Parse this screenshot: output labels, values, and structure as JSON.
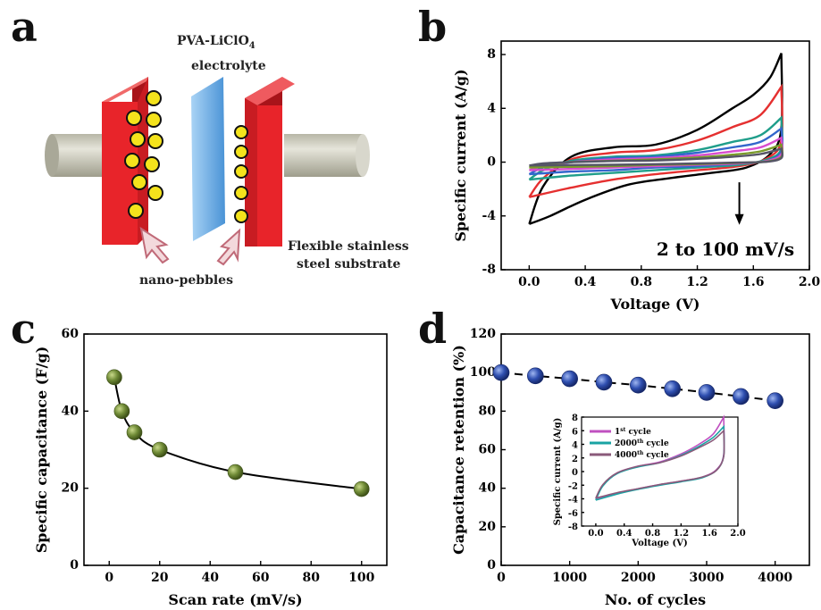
{
  "panels": {
    "a": "a",
    "b": "b",
    "c": "c",
    "d": "d"
  },
  "schematic": {
    "electrolyte_l1": "PVA-LiClO",
    "electrolyte_sub": "4",
    "electrolyte_l2": "electrolyte",
    "substrate_l1": "Flexible stainless",
    "substrate_l2": "steel substrate",
    "pebbles": "nano-pebbles",
    "colors": {
      "plate": "#e8242a",
      "plate_dark": "#a8141a",
      "pebble": "#f4e31c",
      "separator": "#6fb1e6",
      "rod": "#c9c8bb"
    }
  },
  "chart_data": [
    {
      "type": "line",
      "panel": "b",
      "xlabel": "Voltage (V)",
      "ylabel": "Specific current (A/g)",
      "xlim": [
        -0.2,
        2.0
      ],
      "ylim": [
        -8,
        9
      ],
      "xticks": [
        "0.0",
        "0.4",
        "0.8",
        "1.2",
        "1.6",
        "2.0"
      ],
      "yticks": [
        "8",
        "4",
        "0",
        "-4",
        "-8"
      ],
      "annotation": "2 to 100 mV/s",
      "series": [
        {
          "color": "#000000",
          "upper": [
            [
              0.0,
              -4.6
            ],
            [
              0.1,
              -1.8
            ],
            [
              0.3,
              0.4
            ],
            [
              0.6,
              1.1
            ],
            [
              0.9,
              1.3
            ],
            [
              1.2,
              2.4
            ],
            [
              1.45,
              4.0
            ],
            [
              1.6,
              5.0
            ],
            [
              1.72,
              6.3
            ],
            [
              1.8,
              8.1
            ]
          ],
          "lower": [
            [
              1.8,
              8.1
            ],
            [
              1.8,
              2.5
            ],
            [
              1.72,
              0.6
            ],
            [
              1.55,
              -0.4
            ],
            [
              1.3,
              -0.8
            ],
            [
              1.0,
              -1.2
            ],
            [
              0.7,
              -1.7
            ],
            [
              0.4,
              -2.8
            ],
            [
              0.15,
              -4.0
            ],
            [
              0.0,
              -4.6
            ]
          ]
        },
        {
          "color": "#e53030",
          "upper": [
            [
              0.0,
              -2.6
            ],
            [
              0.1,
              -1.2
            ],
            [
              0.3,
              0.2
            ],
            [
              0.6,
              0.7
            ],
            [
              0.9,
              0.9
            ],
            [
              1.2,
              1.6
            ],
            [
              1.45,
              2.6
            ],
            [
              1.65,
              3.5
            ],
            [
              1.8,
              5.6
            ]
          ],
          "lower": [
            [
              1.8,
              5.6
            ],
            [
              1.8,
              1.6
            ],
            [
              1.7,
              0.3
            ],
            [
              1.5,
              -0.3
            ],
            [
              1.2,
              -0.6
            ],
            [
              0.9,
              -0.9
            ],
            [
              0.6,
              -1.3
            ],
            [
              0.3,
              -1.9
            ],
            [
              0.0,
              -2.6
            ]
          ]
        },
        {
          "color": "#1f9e8a",
          "upper": [
            [
              0.0,
              -1.3
            ],
            [
              0.1,
              -0.6
            ],
            [
              0.3,
              0.1
            ],
            [
              0.6,
              0.4
            ],
            [
              0.9,
              0.5
            ],
            [
              1.2,
              0.9
            ],
            [
              1.45,
              1.5
            ],
            [
              1.65,
              2.0
            ],
            [
              1.8,
              3.3
            ]
          ],
          "lower": [
            [
              1.8,
              3.3
            ],
            [
              1.8,
              1.0
            ],
            [
              1.7,
              0.2
            ],
            [
              1.5,
              -0.2
            ],
            [
              1.2,
              -0.4
            ],
            [
              0.9,
              -0.6
            ],
            [
              0.6,
              -0.8
            ],
            [
              0.3,
              -1.0
            ],
            [
              0.0,
              -1.3
            ]
          ]
        },
        {
          "color": "#3366cc",
          "upper": [
            [
              0.0,
              -0.9
            ],
            [
              0.1,
              -0.4
            ],
            [
              0.3,
              0.0
            ],
            [
              0.6,
              0.3
            ],
            [
              0.9,
              0.4
            ],
            [
              1.2,
              0.7
            ],
            [
              1.45,
              1.1
            ],
            [
              1.65,
              1.5
            ],
            [
              1.8,
              2.5
            ]
          ],
          "lower": [
            [
              1.8,
              2.5
            ],
            [
              1.8,
              0.8
            ],
            [
              1.7,
              0.1
            ],
            [
              1.5,
              -0.1
            ],
            [
              1.2,
              -0.3
            ],
            [
              0.9,
              -0.4
            ],
            [
              0.6,
              -0.6
            ],
            [
              0.3,
              -0.7
            ],
            [
              0.0,
              -0.9
            ]
          ]
        },
        {
          "color": "#d94ccf",
          "upper": [
            [
              0.0,
              -0.6
            ],
            [
              0.1,
              -0.3
            ],
            [
              0.3,
              0.0
            ],
            [
              0.6,
              0.2
            ],
            [
              0.9,
              0.3
            ],
            [
              1.2,
              0.5
            ],
            [
              1.45,
              0.8
            ],
            [
              1.65,
              1.1
            ],
            [
              1.8,
              1.8
            ]
          ],
          "lower": [
            [
              1.8,
              1.8
            ],
            [
              1.8,
              0.6
            ],
            [
              1.7,
              0.1
            ],
            [
              1.5,
              -0.1
            ],
            [
              1.2,
              -0.2
            ],
            [
              0.9,
              -0.3
            ],
            [
              0.6,
              -0.4
            ],
            [
              0.3,
              -0.5
            ],
            [
              0.0,
              -0.6
            ]
          ]
        },
        {
          "color": "#7a9a2a",
          "upper": [
            [
              0.0,
              -0.4
            ],
            [
              0.1,
              -0.2
            ],
            [
              0.3,
              0.0
            ],
            [
              0.6,
              0.1
            ],
            [
              0.9,
              0.2
            ],
            [
              1.2,
              0.35
            ],
            [
              1.45,
              0.55
            ],
            [
              1.65,
              0.8
            ],
            [
              1.8,
              1.3
            ]
          ],
          "lower": [
            [
              1.8,
              1.3
            ],
            [
              1.8,
              0.4
            ],
            [
              1.7,
              0.05
            ],
            [
              1.5,
              -0.05
            ],
            [
              1.2,
              -0.15
            ],
            [
              0.9,
              -0.2
            ],
            [
              0.6,
              -0.3
            ],
            [
              0.3,
              -0.35
            ],
            [
              0.0,
              -0.4
            ]
          ]
        },
        {
          "color": "#555566",
          "upper": [
            [
              0.0,
              -0.25
            ],
            [
              0.1,
              -0.1
            ],
            [
              0.3,
              0.0
            ],
            [
              0.6,
              0.08
            ],
            [
              0.9,
              0.12
            ],
            [
              1.2,
              0.25
            ],
            [
              1.45,
              0.4
            ],
            [
              1.65,
              0.6
            ],
            [
              1.8,
              1.0
            ]
          ],
          "lower": [
            [
              1.8,
              1.0
            ],
            [
              1.8,
              0.3
            ],
            [
              1.7,
              0.03
            ],
            [
              1.5,
              -0.03
            ],
            [
              1.2,
              -0.1
            ],
            [
              0.9,
              -0.15
            ],
            [
              0.6,
              -0.2
            ],
            [
              0.3,
              -0.22
            ],
            [
              0.0,
              -0.25
            ]
          ]
        }
      ]
    },
    {
      "type": "line",
      "panel": "c",
      "xlabel": "Scan rate (mV/s)",
      "ylabel": "Specific capacitance (F/g)",
      "xlim": [
        -10,
        110
      ],
      "ylim": [
        0,
        60
      ],
      "xticks": [
        "0",
        "20",
        "40",
        "60",
        "80",
        "100"
      ],
      "yticks": [
        "0",
        "20",
        "40",
        "60"
      ],
      "x": [
        2,
        5,
        10,
        20,
        50,
        100
      ],
      "y": [
        48.8,
        40.0,
        34.5,
        30.0,
        24.2,
        19.8
      ],
      "marker_color": "#6f8a36"
    },
    {
      "type": "line",
      "panel": "d",
      "xlabel": "No. of cycles",
      "ylabel": "Capacitance retention (%)",
      "xlim": [
        0,
        4500
      ],
      "ylim": [
        0,
        120
      ],
      "xticks": [
        "0",
        "1000",
        "2000",
        "3000",
        "4000"
      ],
      "yticks": [
        "0",
        "20",
        "40",
        "60",
        "80",
        "100",
        "120"
      ],
      "x": [
        0,
        500,
        1000,
        1500,
        2000,
        2500,
        3000,
        3500,
        4000
      ],
      "y": [
        100,
        98.3,
        96.8,
        95.0,
        93.5,
        91.6,
        89.7,
        87.6,
        85.4
      ],
      "marker_color": "#2f4fb0"
    },
    {
      "type": "line",
      "panel": "d-inset",
      "xlabel": "Voltage (V)",
      "ylabel": "Specific current (A/g)",
      "xlim": [
        -0.2,
        2.0
      ],
      "ylim": [
        -8,
        8
      ],
      "xticks": [
        "0.0",
        "0.4",
        "0.8",
        "1.2",
        "1.6",
        "2.0"
      ],
      "yticks": [
        "8",
        "6",
        "4",
        "2",
        "0",
        "-2",
        "-4",
        "-6",
        "-8"
      ],
      "legend": [
        {
          "name": "1",
          "sup": "st",
          "rest": " cycle",
          "color": "#c050c0"
        },
        {
          "name": "2000",
          "sup": "th",
          "rest": " cycle",
          "color": "#1aa3a3"
        },
        {
          "name": "4000",
          "sup": "th",
          "rest": " cycle",
          "color": "#8a5a7a"
        }
      ],
      "series": [
        {
          "color": "#c050c0",
          "upper": [
            [
              0.0,
              -4.0
            ],
            [
              0.1,
              -2.0
            ],
            [
              0.3,
              -0.2
            ],
            [
              0.6,
              0.8
            ],
            [
              0.9,
              1.4
            ],
            [
              1.2,
              2.6
            ],
            [
              1.45,
              4.0
            ],
            [
              1.65,
              5.5
            ],
            [
              1.8,
              8.0
            ]
          ],
          "lower": [
            [
              1.8,
              8.0
            ],
            [
              1.8,
              2.5
            ],
            [
              1.7,
              0.3
            ],
            [
              1.5,
              -0.8
            ],
            [
              1.2,
              -1.4
            ],
            [
              0.9,
              -1.9
            ],
            [
              0.6,
              -2.5
            ],
            [
              0.3,
              -3.2
            ],
            [
              0.0,
              -4.0
            ]
          ]
        },
        {
          "color": "#1aa3a3",
          "upper": [
            [
              0.0,
              -4.2
            ],
            [
              0.1,
              -2.1
            ],
            [
              0.3,
              -0.3
            ],
            [
              0.6,
              0.7
            ],
            [
              0.9,
              1.3
            ],
            [
              1.2,
              2.4
            ],
            [
              1.45,
              3.7
            ],
            [
              1.65,
              5.0
            ],
            [
              1.8,
              6.6
            ]
          ],
          "lower": [
            [
              1.8,
              6.6
            ],
            [
              1.8,
              2.3
            ],
            [
              1.7,
              0.2
            ],
            [
              1.5,
              -0.9
            ],
            [
              1.2,
              -1.5
            ],
            [
              0.9,
              -2.0
            ],
            [
              0.6,
              -2.6
            ],
            [
              0.3,
              -3.3
            ],
            [
              0.0,
              -4.2
            ]
          ]
        },
        {
          "color": "#8a5a7a",
          "upper": [
            [
              0.0,
              -3.9
            ],
            [
              0.1,
              -1.9
            ],
            [
              0.3,
              -0.2
            ],
            [
              0.6,
              0.8
            ],
            [
              0.9,
              1.3
            ],
            [
              1.2,
              2.3
            ],
            [
              1.45,
              3.5
            ],
            [
              1.65,
              4.6
            ],
            [
              1.8,
              6.0
            ]
          ],
          "lower": [
            [
              1.8,
              6.0
            ],
            [
              1.8,
              2.2
            ],
            [
              1.7,
              0.2
            ],
            [
              1.5,
              -0.8
            ],
            [
              1.2,
              -1.4
            ],
            [
              0.9,
              -1.9
            ],
            [
              0.6,
              -2.5
            ],
            [
              0.3,
              -3.1
            ],
            [
              0.0,
              -3.9
            ]
          ]
        }
      ]
    }
  ]
}
